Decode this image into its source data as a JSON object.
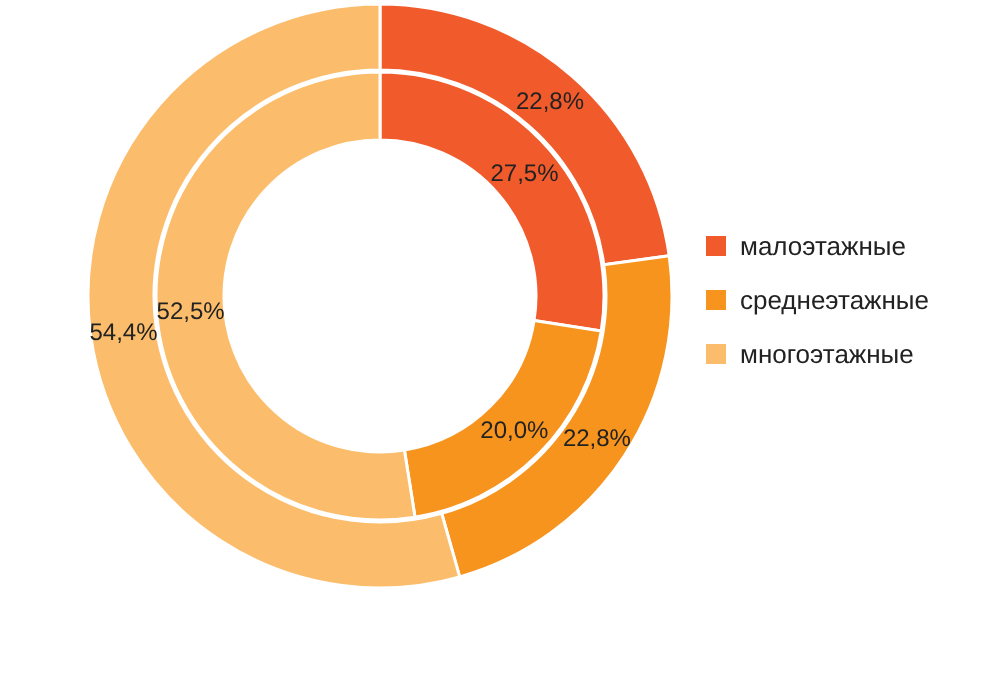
{
  "chart_data": {
    "type": "donut",
    "categories": [
      "малоэтажные",
      "среднеэтажные",
      "многоэтажные"
    ],
    "colors": [
      "#f15a2b",
      "#f7941e",
      "#fbbd6b"
    ],
    "series": [
      {
        "values": [
          22.8,
          22.8,
          54.4
        ],
        "value_labels": [
          "22,8%",
          "22,8%",
          "54,4%"
        ]
      },
      {
        "values": [
          27.5,
          20.0,
          52.5
        ],
        "value_labels": [
          "27,5%",
          "20,0%",
          "52,5%"
        ]
      }
    ],
    "legend": "right"
  }
}
